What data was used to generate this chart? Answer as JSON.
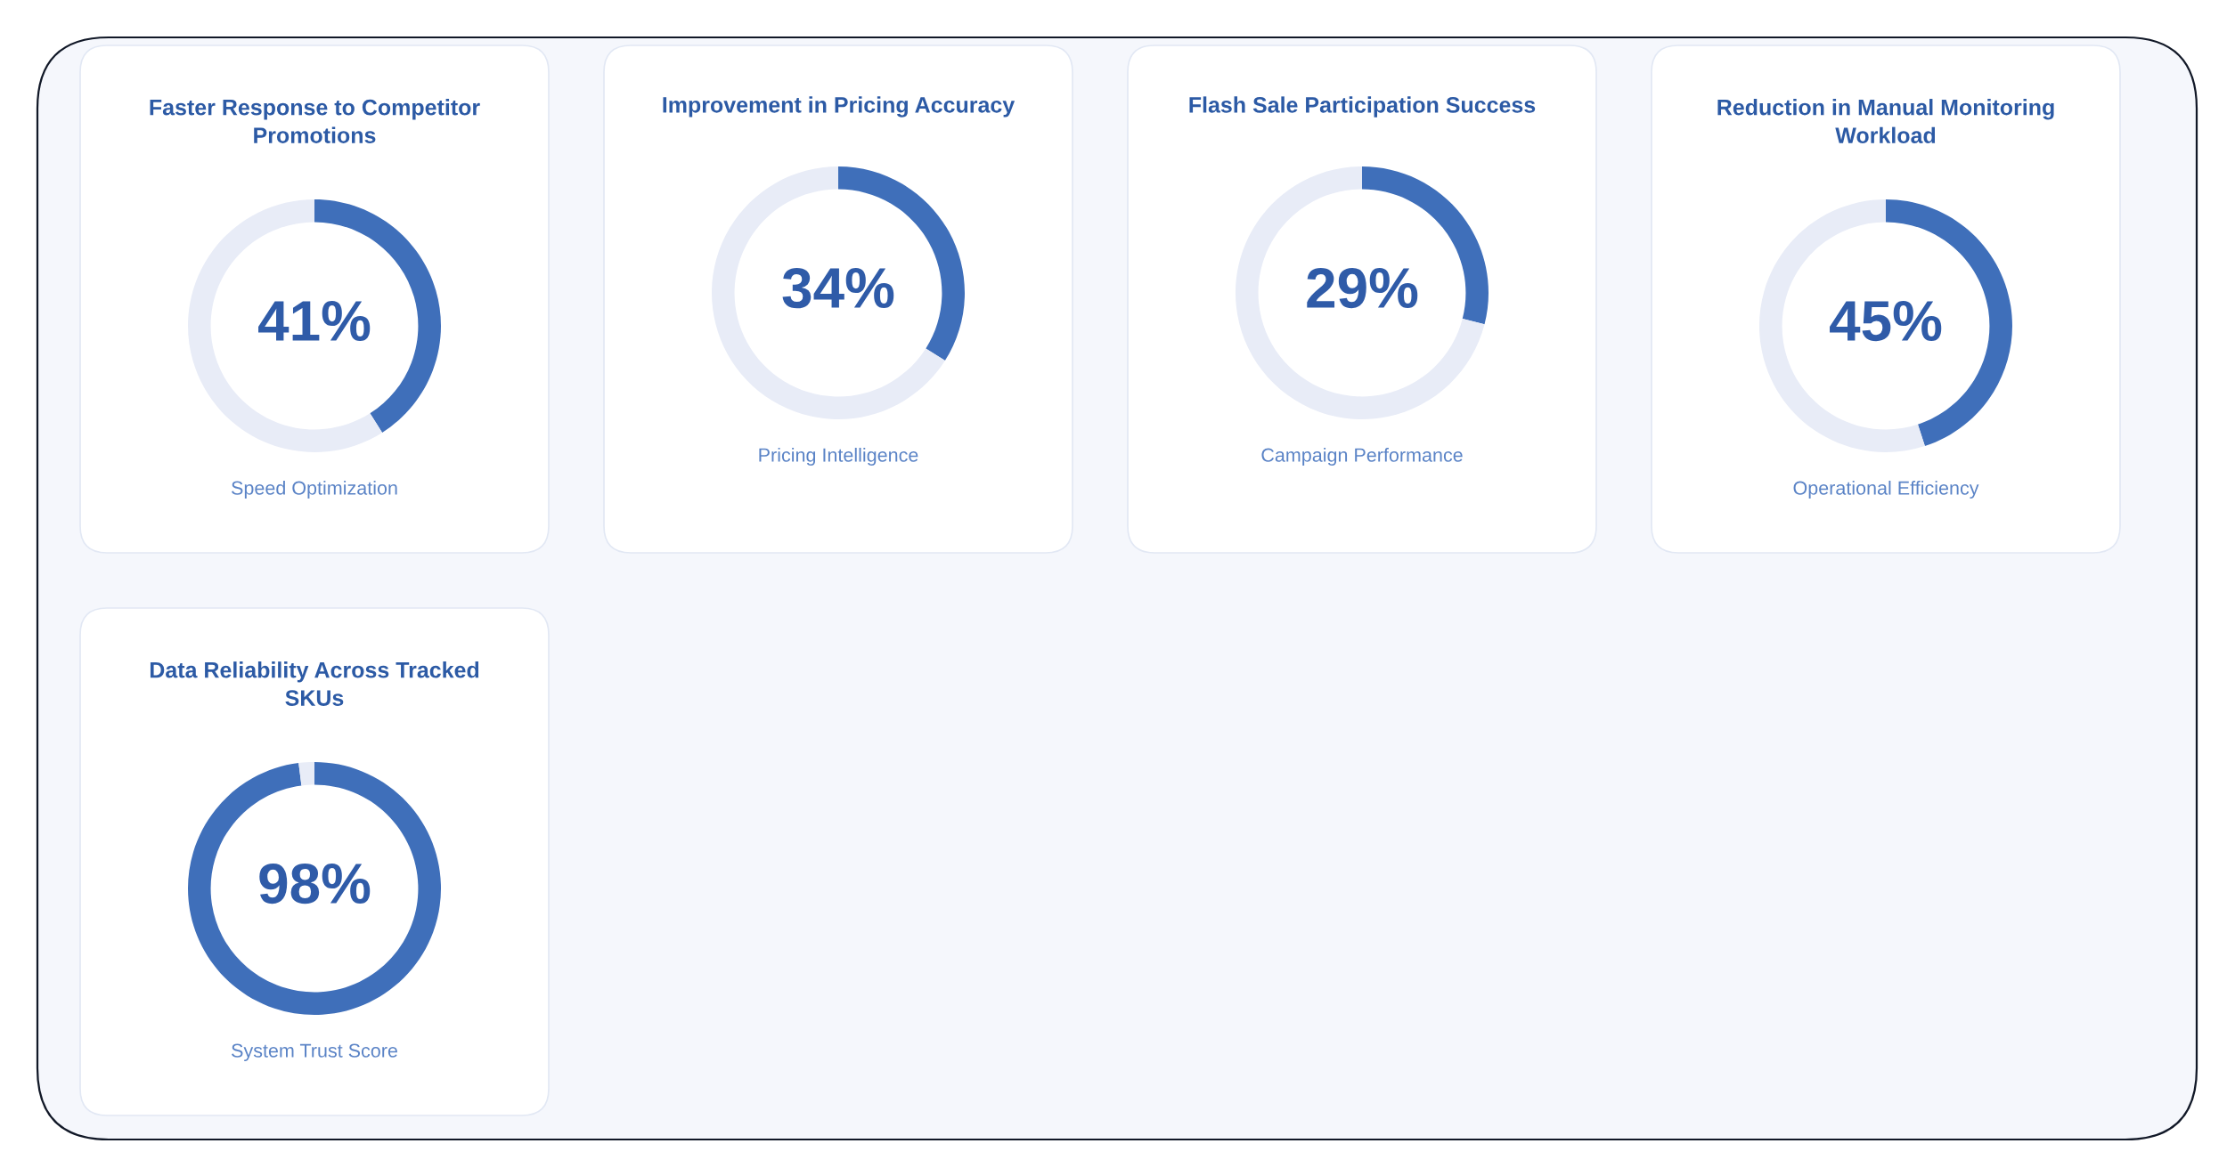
{
  "chart_data": [
    {
      "type": "donut",
      "title": "Faster Response to Competitor Promotions",
      "subtitle": "Speed Optimization",
      "categories": [
        null,
        null
      ],
      "values": [
        41,
        59
      ],
      "colors": [
        "#3f6fba",
        "#e8ecf7"
      ],
      "value_labels": [
        "41%",
        null
      ]
    },
    {
      "type": "donut",
      "title": "Improvement in Pricing Accuracy",
      "subtitle": "Pricing Intelligence",
      "categories": [
        null,
        null
      ],
      "values": [
        34,
        66
      ],
      "colors": [
        "#3f6fba",
        "#e8ecf7"
      ],
      "value_labels": [
        "34%",
        null
      ]
    },
    {
      "type": "donut",
      "title": "Flash Sale Participation Success",
      "subtitle": "Campaign Performance",
      "categories": [
        null,
        null
      ],
      "values": [
        29,
        71
      ],
      "colors": [
        "#3f6fba",
        "#e8ecf7"
      ],
      "value_labels": [
        "29%",
        null
      ]
    },
    {
      "type": "donut",
      "title": "Reduction in Manual Monitoring Workload",
      "subtitle": "Operational Efficiency",
      "categories": [
        null,
        null
      ],
      "values": [
        45,
        55
      ],
      "colors": [
        "#3f6fba",
        "#e8ecf7"
      ],
      "value_labels": [
        "45%",
        null
      ]
    },
    {
      "type": "donut",
      "title": "Data Reliability Across Tracked SKUs",
      "subtitle": "System Trust Score",
      "categories": [
        null,
        null
      ],
      "values": [
        98,
        2
      ],
      "colors": [
        "#3f6fba",
        "#e8ecf7"
      ],
      "value_labels": [
        "98%",
        null
      ]
    }
  ]
}
